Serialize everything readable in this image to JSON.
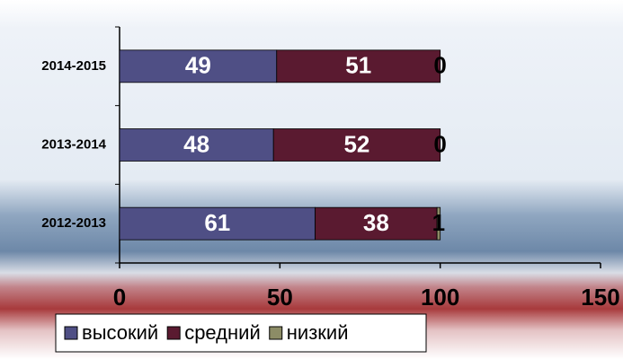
{
  "chart_data": {
    "type": "stacked_barh",
    "categories": [
      "2012-2013",
      "2013-2014",
      "2014-2015"
    ],
    "series": [
      {
        "name": "высокий",
        "color": "#4f4f85",
        "values": [
          61,
          48,
          49
        ]
      },
      {
        "name": "средний",
        "color": "#5a1a30",
        "values": [
          38,
          52,
          51
        ]
      },
      {
        "name": "низкий",
        "color": "#8c8c66",
        "values": [
          1,
          0,
          0
        ]
      }
    ],
    "xlim": [
      0,
      150
    ],
    "xticks": [
      0,
      50,
      100,
      150
    ],
    "legend": "bottom"
  }
}
